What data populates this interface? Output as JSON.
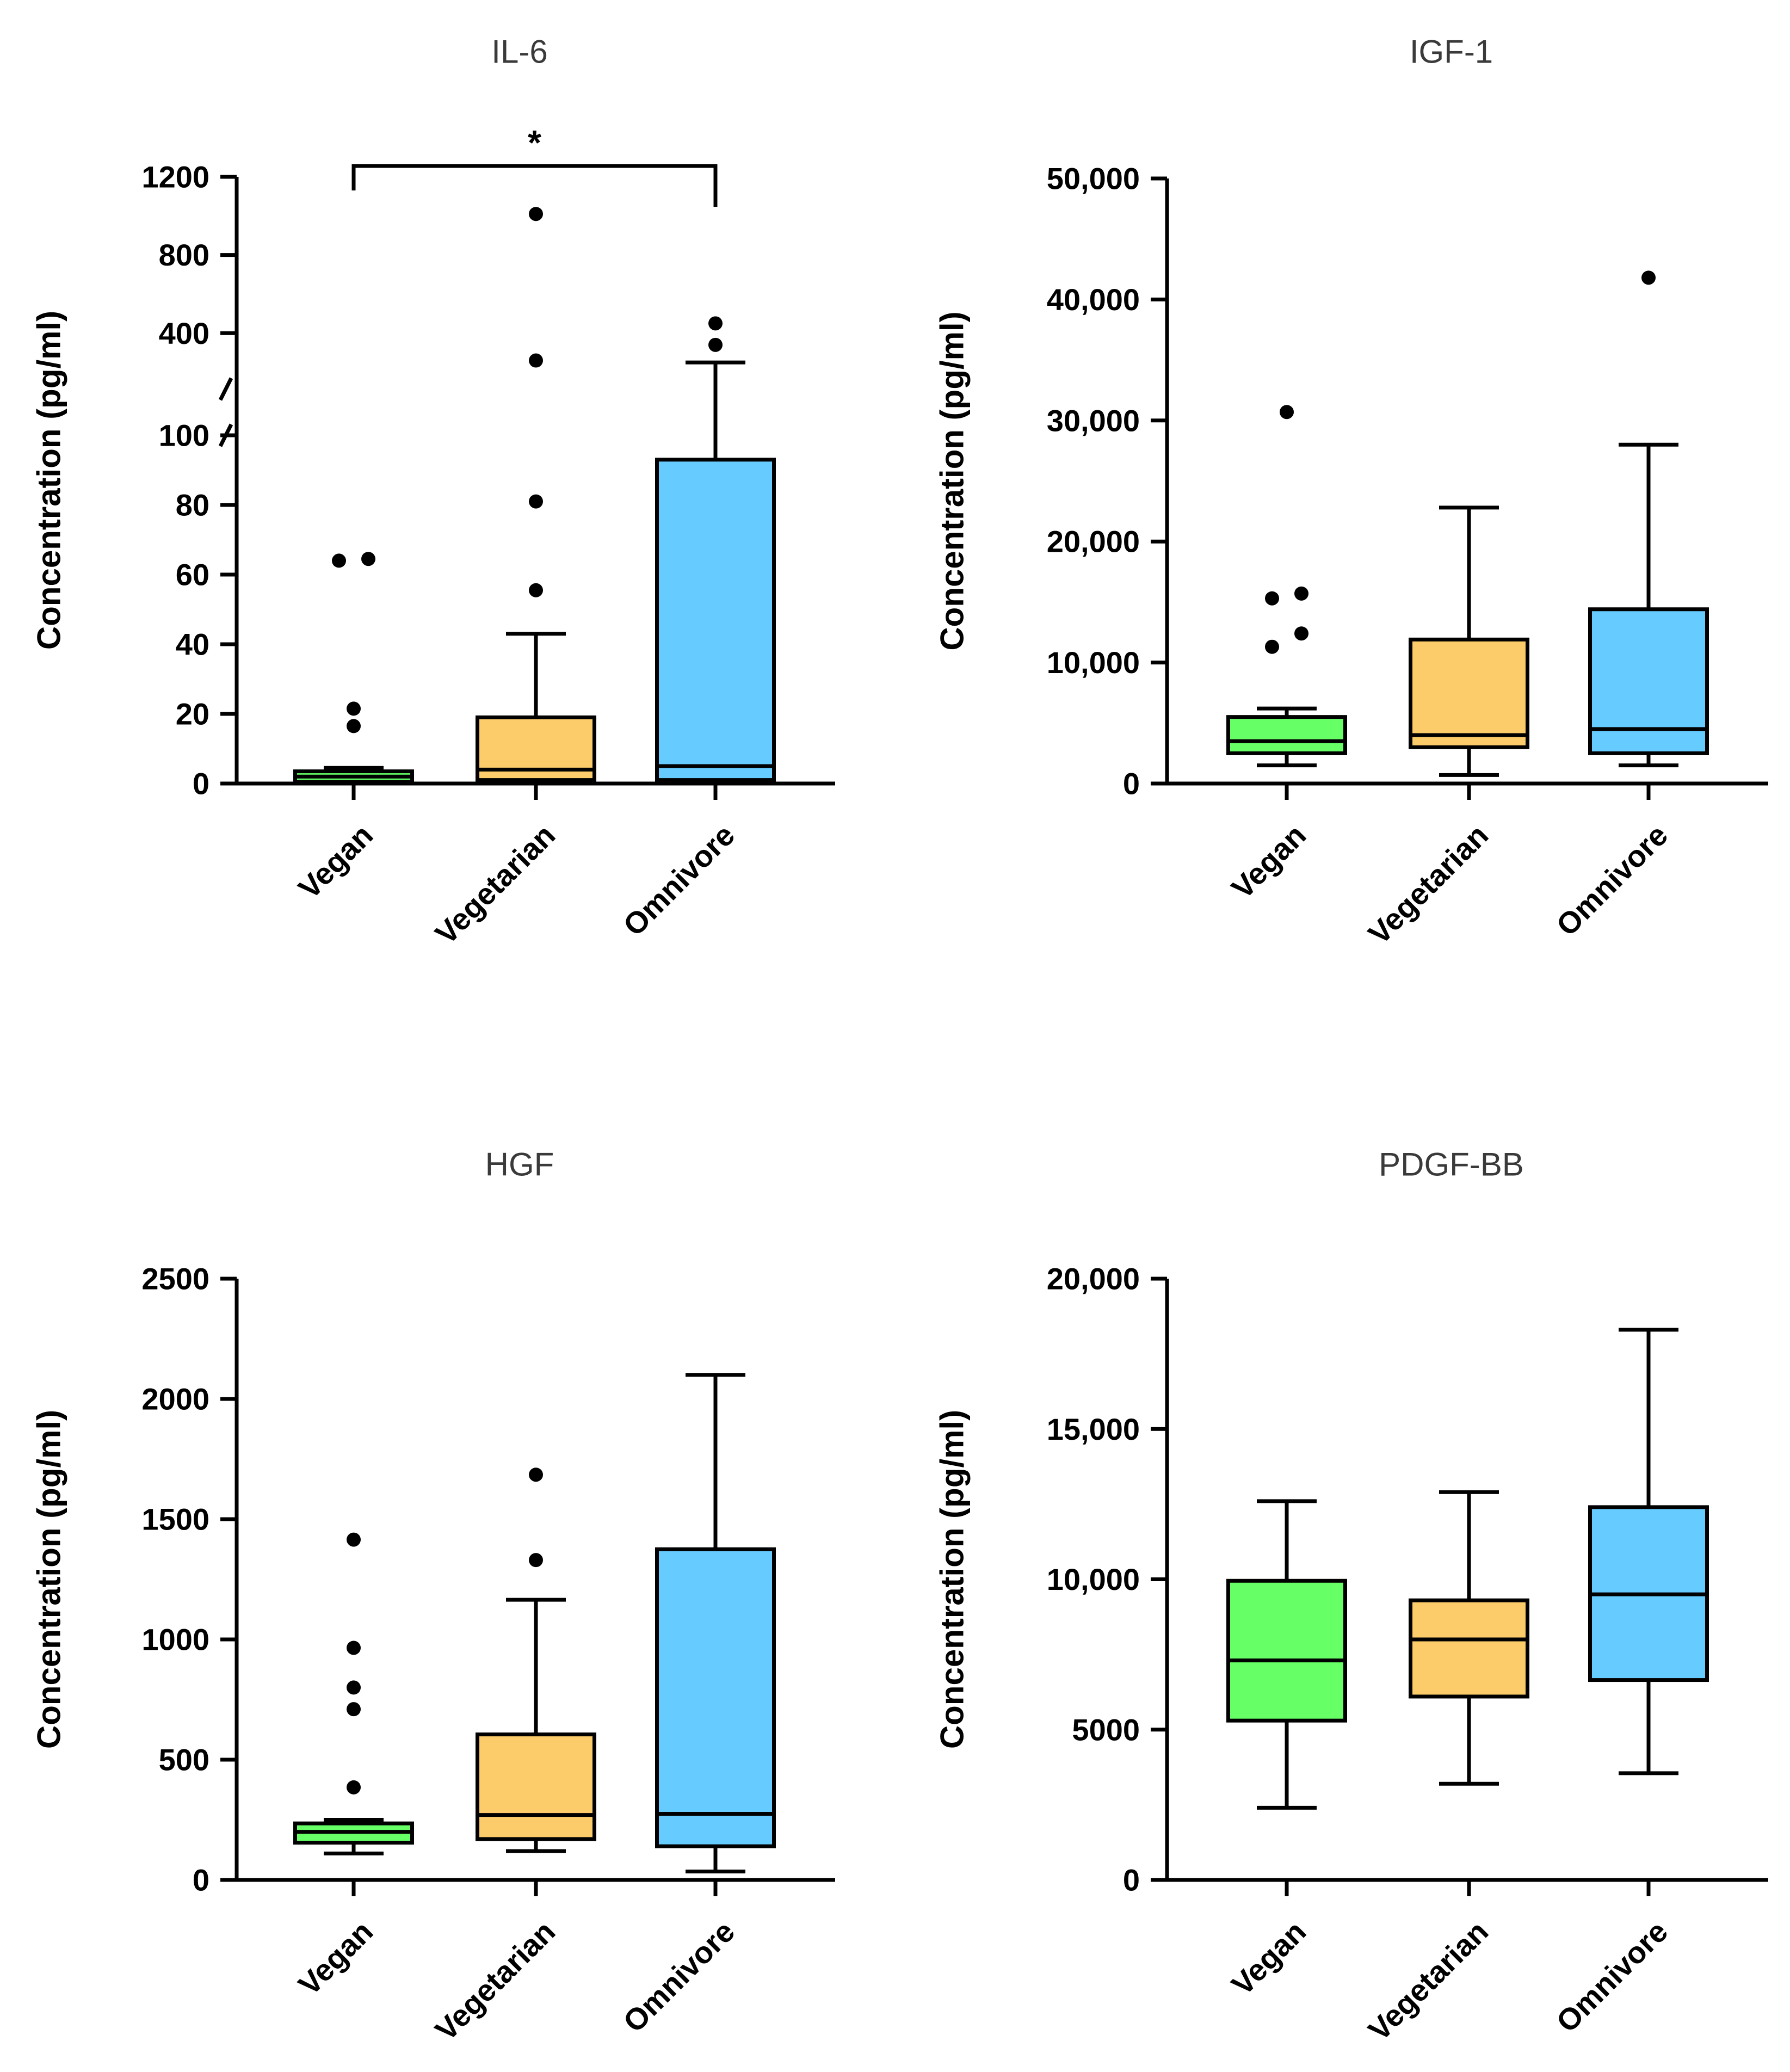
{
  "colors": {
    "vegan": "#66ff66",
    "vegetarian": "#fccb6a",
    "omnivore": "#66ccff",
    "stroke": "#000000"
  },
  "chart_data": [
    {
      "type": "box",
      "title": "IL-6",
      "ylabel": "Concentration (pg/ml)",
      "categories": [
        "Vegan",
        "Vegetarian",
        "Omnivore"
      ],
      "axis_break": true,
      "lower_segment": {
        "ylim": [
          0,
          100
        ],
        "ticks": [
          "0",
          "20",
          "40",
          "60",
          "80",
          "100"
        ]
      },
      "upper_segment": {
        "ylim": [
          100,
          1200
        ],
        "ticks": [
          "400",
          "800",
          "1200"
        ]
      },
      "significance": {
        "from": "Vegan",
        "to": "Omnivore",
        "label": "*"
      },
      "boxes": [
        {
          "group": "Vegan",
          "whisker_low": 0,
          "q1": 0.5,
          "median": 2,
          "q3": 3.5,
          "whisker_high": 4.5,
          "outliers": [
            16.5,
            21.5,
            64,
            64.5
          ]
        },
        {
          "group": "Vegetarian",
          "whisker_low": 0.5,
          "q1": 1,
          "median": 4,
          "q3": 19,
          "whisker_high": 43,
          "outliers": [
            55.5,
            81,
            260,
            1010
          ]
        },
        {
          "group": "Omnivore",
          "whisker_low": 0.5,
          "q1": 1,
          "median": 5,
          "q3": 93,
          "whisker_high": 250,
          "outliers": [
            340,
            450
          ]
        }
      ]
    },
    {
      "type": "box",
      "title": "IGF-1",
      "ylabel": "Concentration (pg/ml)",
      "categories": [
        "Vegan",
        "Vegetarian",
        "Omnivore"
      ],
      "ylim": [
        0,
        50000
      ],
      "ticks": [
        "0",
        "10,000",
        "20,000",
        "30,000",
        "40,000",
        "50,000"
      ],
      "boxes": [
        {
          "group": "Vegan",
          "whisker_low": 1500,
          "q1": 2500,
          "median": 3500,
          "q3": 5500,
          "whisker_high": 6200,
          "outliers": [
            11300,
            12400,
            15300,
            15700,
            30700
          ]
        },
        {
          "group": "Vegetarian",
          "whisker_low": 700,
          "q1": 3000,
          "median": 4000,
          "q3": 11900,
          "whisker_high": 22800,
          "outliers": []
        },
        {
          "group": "Omnivore",
          "whisker_low": 1500,
          "q1": 2500,
          "median": 4500,
          "q3": 14400,
          "whisker_high": 28000,
          "outliers": [
            41800
          ]
        }
      ]
    },
    {
      "type": "box",
      "title": "HGF",
      "ylabel": "Concentration (pg/ml)",
      "categories": [
        "Vegan",
        "Vegetarian",
        "Omnivore"
      ],
      "ylim": [
        0,
        2500
      ],
      "ticks": [
        "0",
        "500",
        "1000",
        "1500",
        "2000",
        "2500"
      ],
      "boxes": [
        {
          "group": "Vegan",
          "whisker_low": 110,
          "q1": 155,
          "median": 200,
          "q3": 235,
          "whisker_high": 250,
          "outliers": [
            385,
            710,
            800,
            965,
            1415
          ]
        },
        {
          "group": "Vegetarian",
          "whisker_low": 120,
          "q1": 170,
          "median": 270,
          "q3": 605,
          "whisker_high": 1165,
          "outliers": [
            1330,
            1685
          ]
        },
        {
          "group": "Omnivore",
          "whisker_low": 35,
          "q1": 140,
          "median": 275,
          "q3": 1375,
          "whisker_high": 2100,
          "outliers": []
        }
      ]
    },
    {
      "type": "box",
      "title": "PDGF-BB",
      "ylabel": "Concentration (pg/ml)",
      "categories": [
        "Vegan",
        "Vegetarian",
        "Omnivore"
      ],
      "ylim": [
        0,
        20000
      ],
      "ticks": [
        "0",
        "5000",
        "10,000",
        "15,000",
        "20,000"
      ],
      "boxes": [
        {
          "group": "Vegan",
          "whisker_low": 2400,
          "q1": 5300,
          "median": 7300,
          "q3": 9950,
          "whisker_high": 12600,
          "outliers": []
        },
        {
          "group": "Vegetarian",
          "whisker_low": 3200,
          "q1": 6100,
          "median": 8000,
          "q3": 9300,
          "whisker_high": 12900,
          "outliers": []
        },
        {
          "group": "Omnivore",
          "whisker_low": 3550,
          "q1": 6650,
          "median": 9500,
          "q3": 12400,
          "whisker_high": 18300,
          "outliers": []
        }
      ]
    }
  ]
}
